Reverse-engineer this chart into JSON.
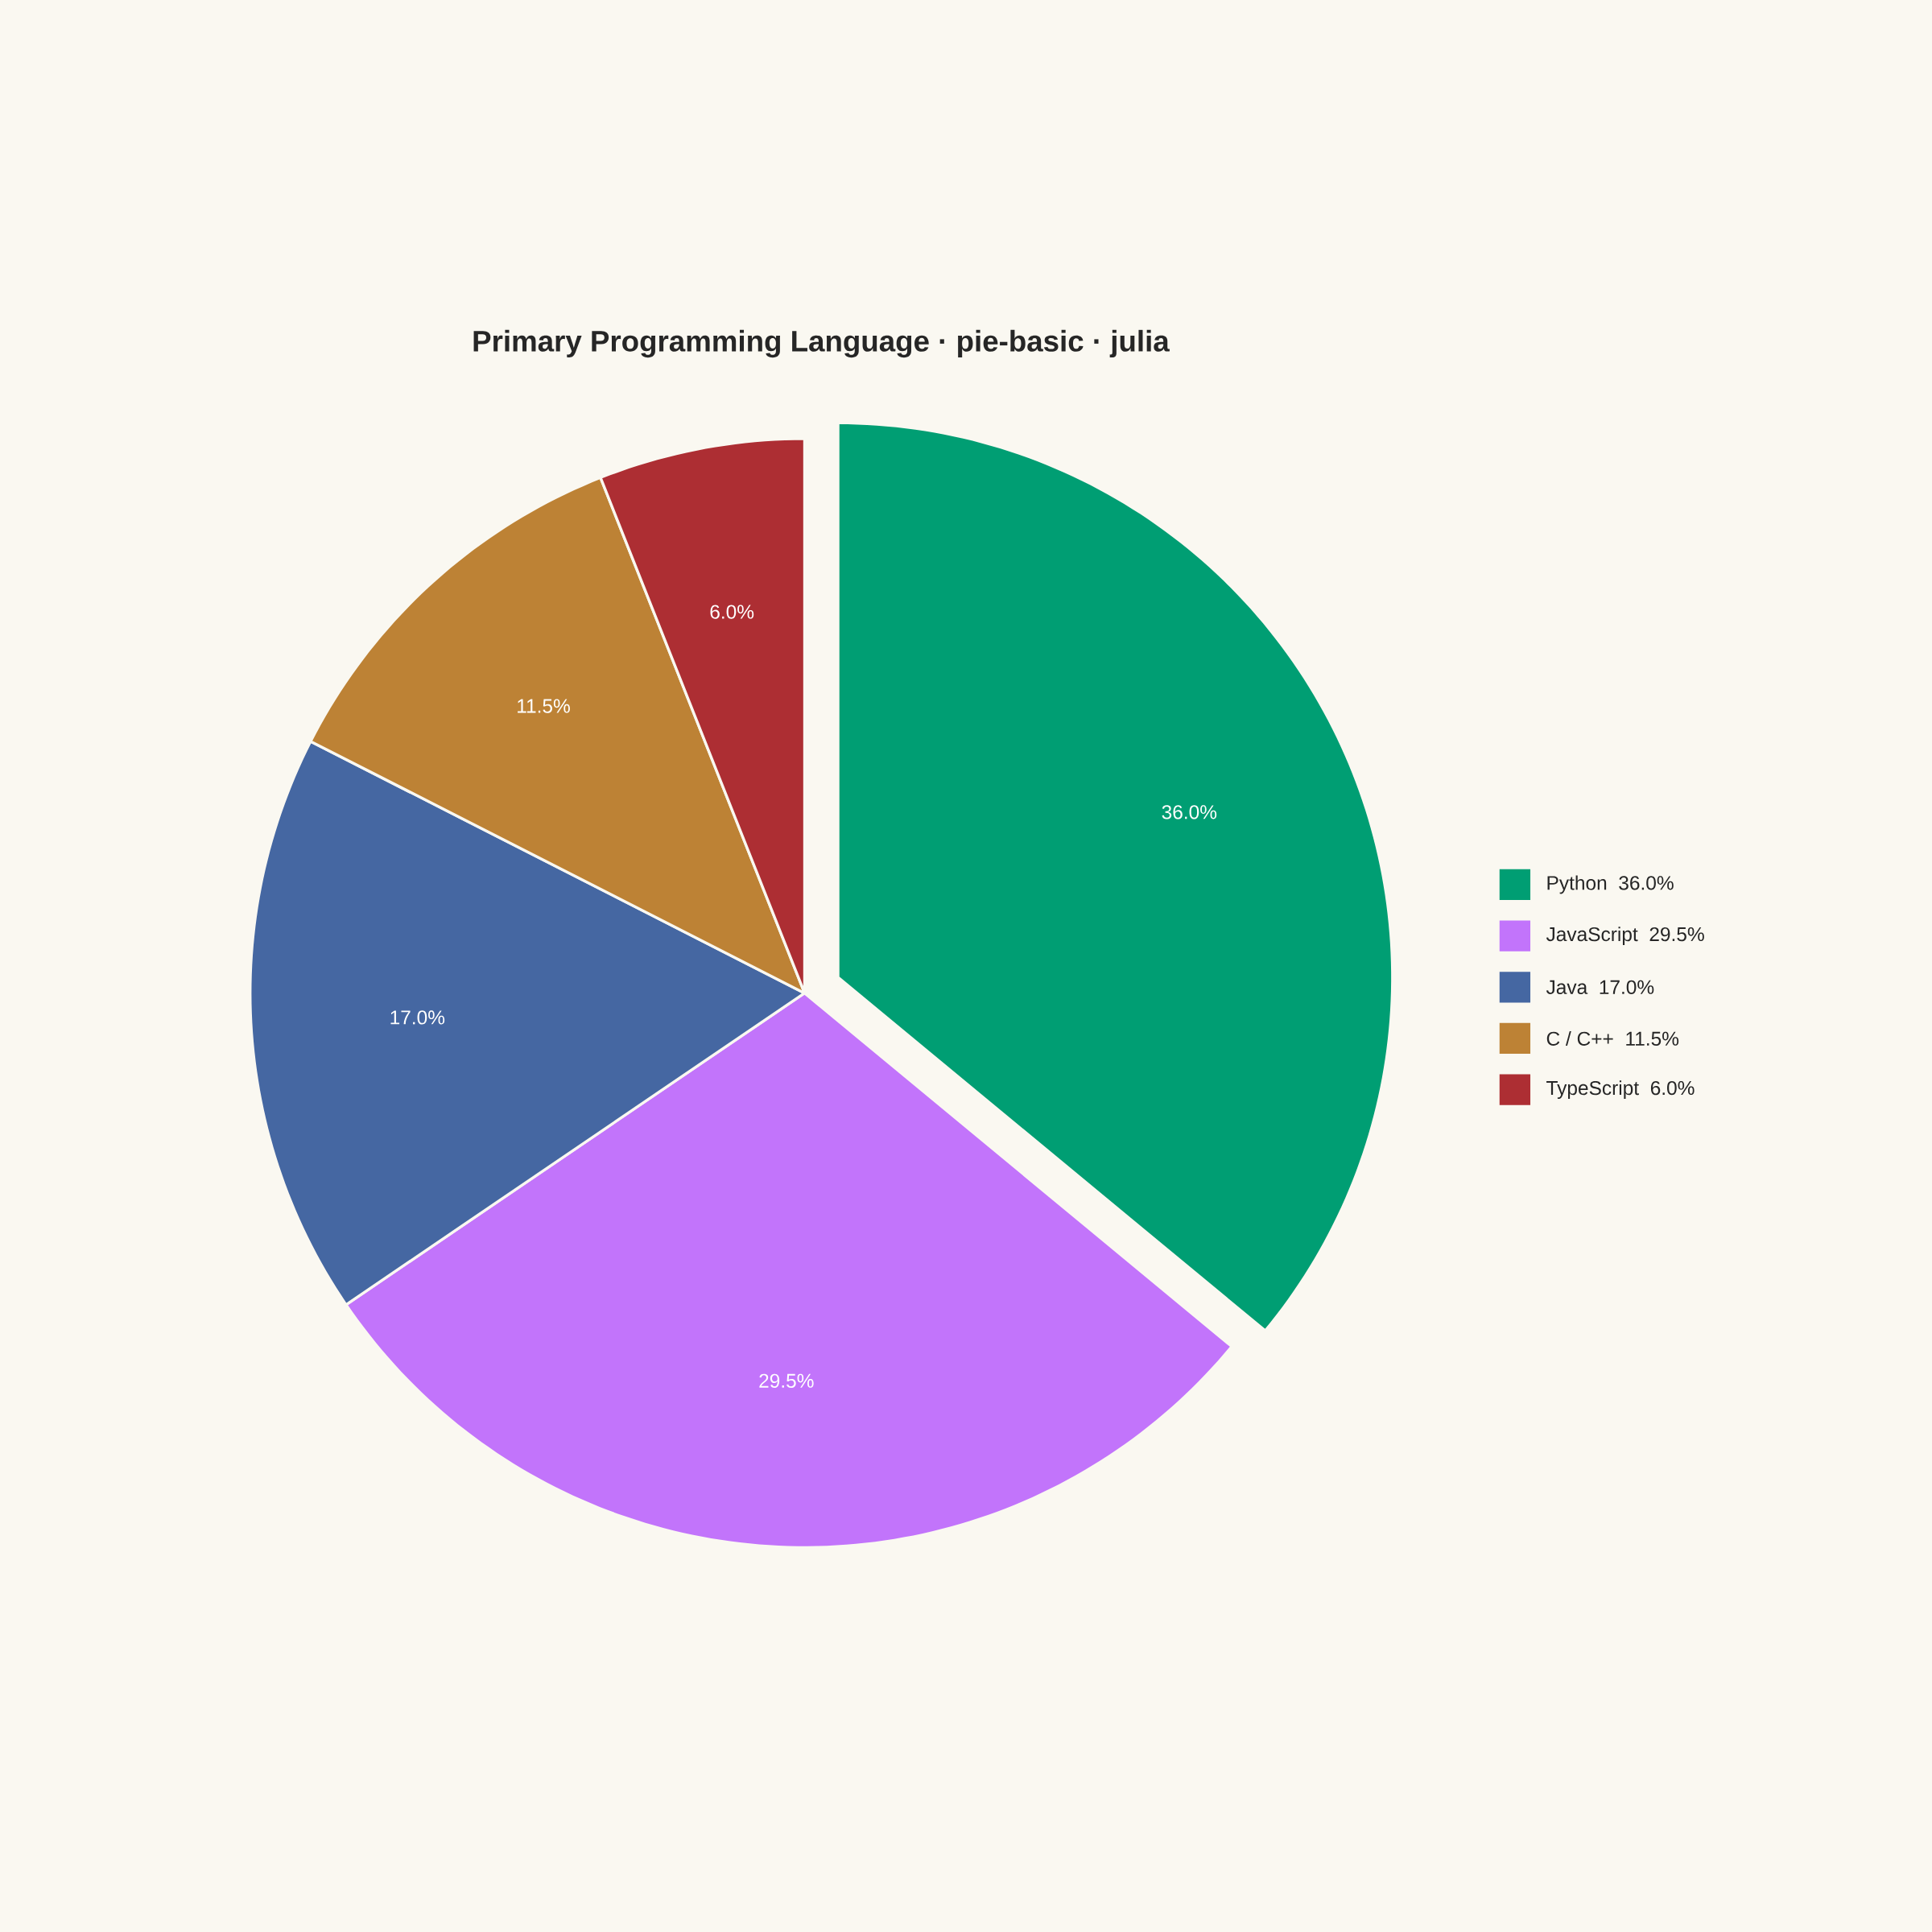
{
  "chart_data": {
    "type": "pie",
    "title": "Primary Programming Language · pie-basic · julia",
    "categories": [
      "Python",
      "JavaScript",
      "Java",
      "C / C++",
      "TypeScript"
    ],
    "values": [
      36.0,
      29.5,
      17.0,
      11.5,
      6.0
    ],
    "colors": [
      "#009e73",
      "#c274fb",
      "#4567a2",
      "#bd8235",
      "#ad2e33"
    ],
    "value_labels": [
      "36.0%",
      "29.5%",
      "17.0%",
      "11.5%",
      "6.0%"
    ],
    "legend": "right"
  }
}
